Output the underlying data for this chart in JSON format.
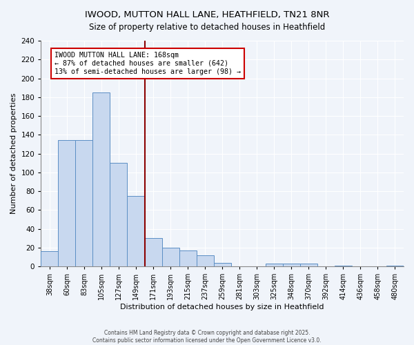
{
  "title1": "IWOOD, MUTTON HALL LANE, HEATHFIELD, TN21 8NR",
  "title2": "Size of property relative to detached houses in Heathfield",
  "xlabel": "Distribution of detached houses by size in Heathfield",
  "ylabel": "Number of detached properties",
  "categories": [
    "38sqm",
    "60sqm",
    "83sqm",
    "105sqm",
    "127sqm",
    "149sqm",
    "171sqm",
    "193sqm",
    "215sqm",
    "237sqm",
    "259sqm",
    "281sqm",
    "303sqm",
    "325sqm",
    "348sqm",
    "370sqm",
    "392sqm",
    "414sqm",
    "436sqm",
    "458sqm",
    "480sqm"
  ],
  "values": [
    16,
    134,
    134,
    185,
    110,
    75,
    30,
    20,
    17,
    12,
    4,
    0,
    0,
    3,
    3,
    3,
    0,
    1,
    0,
    0,
    1
  ],
  "bar_color": "#c8d8ef",
  "bar_edgecolor": "#5b8ec4",
  "vline_color": "#8b0000",
  "vline_x_index": 6,
  "annotation_lines": [
    "IWOOD MUTTON HALL LANE: 168sqm",
    "← 87% of detached houses are smaller (642)",
    "13% of semi-detached houses are larger (98) →"
  ],
  "annotation_box_edgecolor": "#cc0000",
  "annotation_box_facecolor": "#ffffff",
  "ylim": [
    0,
    240
  ],
  "yticks": [
    0,
    20,
    40,
    60,
    80,
    100,
    120,
    140,
    160,
    180,
    200,
    220,
    240
  ],
  "footnote1": "Contains HM Land Registry data © Crown copyright and database right 2025.",
  "footnote2": "Contains public sector information licensed under the Open Government Licence v3.0.",
  "fig_bgcolor": "#f0f4fa",
  "plot_bgcolor": "#f0f4fa",
  "grid_color": "#ffffff",
  "title1_fontsize": 9.5,
  "title2_fontsize": 8.5
}
